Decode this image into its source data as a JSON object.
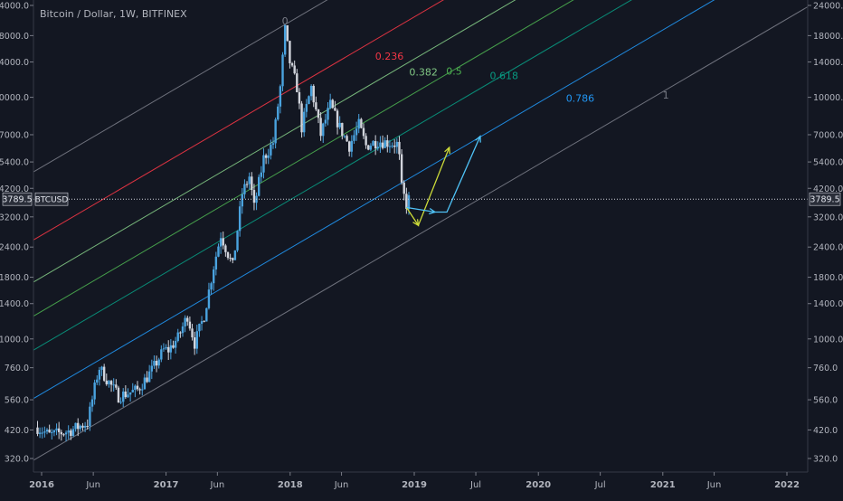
{
  "title": "Bitcoin / Dollar, 1W, BITFINEX",
  "symbol": "BTCUSD",
  "price_label": "3789.5",
  "colors": {
    "background": "#131722",
    "axis_text": "#b2b5be",
    "up_candle": "#4aa3df",
    "down_candle": "#d1d4dc",
    "price_line": "#d1d4dc"
  },
  "chart_data": {
    "type": "candlestick",
    "title": "Bitcoin / Dollar, 1W, BITFINEX",
    "y_scale": "log",
    "ylim": [
      290,
      26000
    ],
    "y_ticks": [
      "320.0",
      "420.0",
      "560.0",
      "760.0",
      "1000.0",
      "1400.0",
      "1800.0",
      "2400.0",
      "3200.0",
      "4200.0",
      "5400.0",
      "7000.0",
      "10000.0",
      "14000.0",
      "18000.0",
      "24000.0"
    ],
    "x_ticks": [
      "2016",
      "Jun",
      "2017",
      "Jun",
      "2018",
      "Jun",
      "2019",
      "Jul",
      "2020",
      "Jul",
      "2021",
      "Jun",
      "2022"
    ],
    "x_tick_dates": [
      "2016-01-01",
      "2016-06-01",
      "2017-01-01",
      "2017-06-01",
      "2018-01-01",
      "2018-06-01",
      "2019-01-01",
      "2019-07-01",
      "2020-01-01",
      "2020-07-01",
      "2021-01-01",
      "2021-06-01",
      "2022-01-01"
    ],
    "current_price": 3789.5,
    "price_path": [
      {
        "date": "2015-12-20",
        "price": 430
      },
      {
        "date": "2016-01-24",
        "price": 400
      },
      {
        "date": "2016-03-20",
        "price": 415
      },
      {
        "date": "2016-05-15",
        "price": 450
      },
      {
        "date": "2016-06-12",
        "price": 700
      },
      {
        "date": "2016-06-19",
        "price": 760
      },
      {
        "date": "2016-07-17",
        "price": 660
      },
      {
        "date": "2016-08-14",
        "price": 580
      },
      {
        "date": "2016-10-09",
        "price": 615
      },
      {
        "date": "2016-11-20",
        "price": 740
      },
      {
        "date": "2016-12-25",
        "price": 900
      },
      {
        "date": "2017-01-08",
        "price": 900
      },
      {
        "date": "2017-02-05",
        "price": 1010
      },
      {
        "date": "2017-03-05",
        "price": 1250
      },
      {
        "date": "2017-03-26",
        "price": 960
      },
      {
        "date": "2017-04-23",
        "price": 1250
      },
      {
        "date": "2017-05-21",
        "price": 2000
      },
      {
        "date": "2017-06-11",
        "price": 2700
      },
      {
        "date": "2017-07-16",
        "price": 2000
      },
      {
        "date": "2017-08-13",
        "price": 4000
      },
      {
        "date": "2017-09-03",
        "price": 4700
      },
      {
        "date": "2017-09-17",
        "price": 3500
      },
      {
        "date": "2017-10-15",
        "price": 5600
      },
      {
        "date": "2017-11-12",
        "price": 6500
      },
      {
        "date": "2017-12-03",
        "price": 11000
      },
      {
        "date": "2017-12-17",
        "price": 19000
      },
      {
        "date": "2017-12-31",
        "price": 14000
      },
      {
        "date": "2018-01-21",
        "price": 11000
      },
      {
        "date": "2018-02-04",
        "price": 7500
      },
      {
        "date": "2018-03-04",
        "price": 11000
      },
      {
        "date": "2018-04-01",
        "price": 7000
      },
      {
        "date": "2018-04-29",
        "price": 9300
      },
      {
        "date": "2018-05-27",
        "price": 7500
      },
      {
        "date": "2018-06-24",
        "price": 6300
      },
      {
        "date": "2018-07-22",
        "price": 7700
      },
      {
        "date": "2018-08-12",
        "price": 6300
      },
      {
        "date": "2018-09-16",
        "price": 6600
      },
      {
        "date": "2018-10-14",
        "price": 6500
      },
      {
        "date": "2018-11-11",
        "price": 6400
      },
      {
        "date": "2018-11-18",
        "price": 5600
      },
      {
        "date": "2018-11-25",
        "price": 4200
      },
      {
        "date": "2018-12-09",
        "price": 3600
      },
      {
        "date": "2018-12-16",
        "price": 3789.5
      }
    ],
    "fib_channel": {
      "levels": [
        {
          "label": "0",
          "color": "#787b86",
          "date": "2017-12-17",
          "price": 20000
        },
        {
          "label": "0.236",
          "color": "#f23645",
          "date": "2018-10-20",
          "price": 14300
        },
        {
          "label": "0.382",
          "color": "#81c784",
          "date": "2019-01-28",
          "price": 12300
        },
        {
          "label": "0.5",
          "color": "#4caf50",
          "date": "2019-04-28",
          "price": 12400
        },
        {
          "label": "0.618",
          "color": "#089981",
          "date": "2019-09-22",
          "price": 11900
        },
        {
          "label": "0.786",
          "color": "#2196f3",
          "date": "2020-05-03",
          "price": 9600
        },
        {
          "label": "1",
          "color": "#787b86",
          "date": "2021-01-10",
          "price": 9900
        }
      ],
      "base_line": {
        "start_date": "2015-12-17",
        "start_price": 320,
        "end_date": "2022-03-10",
        "end_price": 24000
      }
    },
    "arrows": [
      {
        "color": "#cddc39",
        "points": [
          {
            "date": "2018-12-09",
            "price": 3500
          },
          {
            "date": "2019-01-13",
            "price": 2950
          },
          {
            "date": "2019-04-14",
            "price": 6200
          }
        ]
      },
      {
        "color": "#4fc3f7",
        "points": [
          {
            "date": "2018-12-09",
            "price": 3500
          },
          {
            "date": "2019-03-03",
            "price": 3350
          },
          {
            "date": "2019-04-07",
            "price": 3350
          },
          {
            "date": "2019-07-14",
            "price": 6900
          }
        ]
      }
    ]
  }
}
